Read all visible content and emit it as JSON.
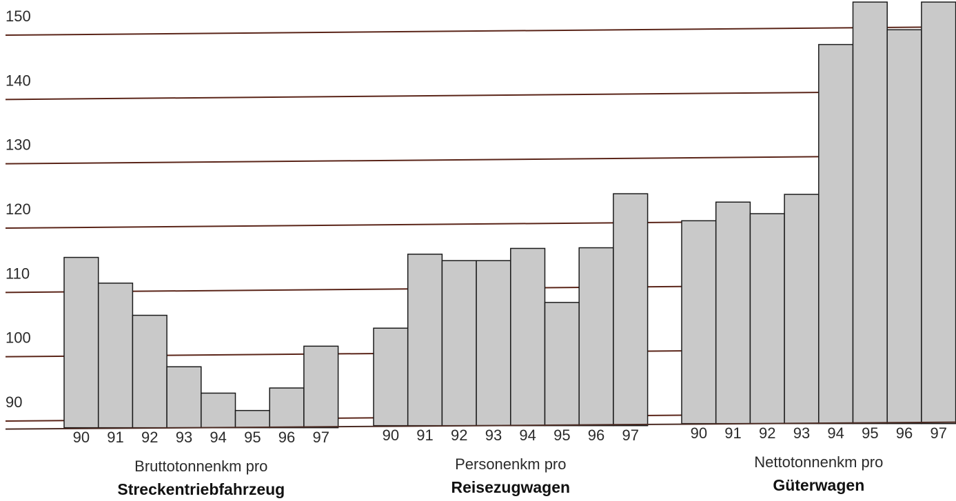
{
  "chart_data": {
    "type": "bar",
    "title": "",
    "xlabel": "",
    "ylabel": "",
    "ylim": [
      88,
      155
    ],
    "yticks": [
      90,
      100,
      110,
      120,
      130,
      140,
      150
    ],
    "grid": true,
    "groups": [
      {
        "label_line1": "Bruttotonnenkm pro",
        "label_line2": "Streckentriebfahrzeug",
        "categories": [
          "90",
          "91",
          "92",
          "93",
          "94",
          "95",
          "96",
          "97"
        ],
        "values": [
          114.8,
          110.8,
          105.8,
          97.8,
          93.7,
          91.0,
          94.5,
          101.0
        ]
      },
      {
        "label_line1": "Personenkm pro",
        "label_line2": "Reisezugwagen",
        "categories": [
          "90",
          "91",
          "92",
          "93",
          "94",
          "95",
          "96",
          "97"
        ],
        "values": [
          103.8,
          115.3,
          114.3,
          114.3,
          116.2,
          107.8,
          116.3,
          124.7
        ]
      },
      {
        "label_line1": "Nettotonnenkm pro",
        "label_line2": "Güterwagen",
        "categories": [
          "90",
          "91",
          "92",
          "93",
          "94",
          "95",
          "96",
          "97"
        ],
        "values": [
          120.5,
          123.4,
          121.6,
          124.6,
          147.9,
          154.5,
          150.2,
          154.5
        ]
      }
    ]
  }
}
